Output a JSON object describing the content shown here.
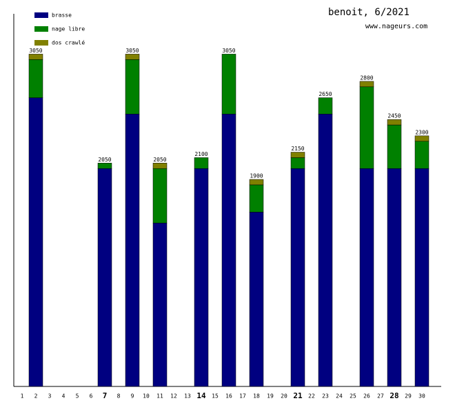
{
  "chart_data": {
    "type": "stacked-bar",
    "title": "benoit, 6/2021",
    "subtitle": "www.nageurs.com",
    "categories": [
      "1",
      "2",
      "3",
      "4",
      "5",
      "6",
      "7",
      "8",
      "9",
      "10",
      "11",
      "12",
      "13",
      "14",
      "15",
      "16",
      "17",
      "18",
      "19",
      "20",
      "21",
      "22",
      "23",
      "24",
      "25",
      "26",
      "27",
      "28",
      "29",
      "30"
    ],
    "series": [
      {
        "name": "brasse",
        "color": "#000080",
        "values": [
          null,
          2650,
          null,
          null,
          null,
          null,
          2000,
          null,
          2500,
          null,
          1500,
          null,
          null,
          2000,
          null,
          2500,
          null,
          1600,
          null,
          null,
          2000,
          null,
          2500,
          null,
          null,
          2000,
          null,
          2000,
          null,
          2000
        ]
      },
      {
        "name": "nage libre",
        "color": "#008000",
        "values": [
          null,
          350,
          null,
          null,
          null,
          null,
          50,
          null,
          500,
          null,
          500,
          null,
          null,
          100,
          null,
          550,
          null,
          250,
          null,
          null,
          100,
          null,
          150,
          null,
          null,
          750,
          null,
          400,
          null,
          250
        ]
      },
      {
        "name": "dos crawlé",
        "color": "#808000",
        "values": [
          null,
          50,
          null,
          null,
          null,
          null,
          null,
          null,
          50,
          null,
          50,
          null,
          null,
          null,
          null,
          null,
          null,
          50,
          null,
          null,
          50,
          null,
          null,
          null,
          null,
          50,
          null,
          50,
          null,
          50
        ]
      }
    ],
    "totals": [
      null,
      3050,
      null,
      null,
      null,
      null,
      2050,
      null,
      3050,
      null,
      2050,
      null,
      null,
      2100,
      null,
      3050,
      null,
      1900,
      null,
      null,
      2150,
      null,
      2650,
      null,
      null,
      2800,
      null,
      2450,
      null,
      2300
    ],
    "ylim": [
      0,
      3420
    ]
  }
}
